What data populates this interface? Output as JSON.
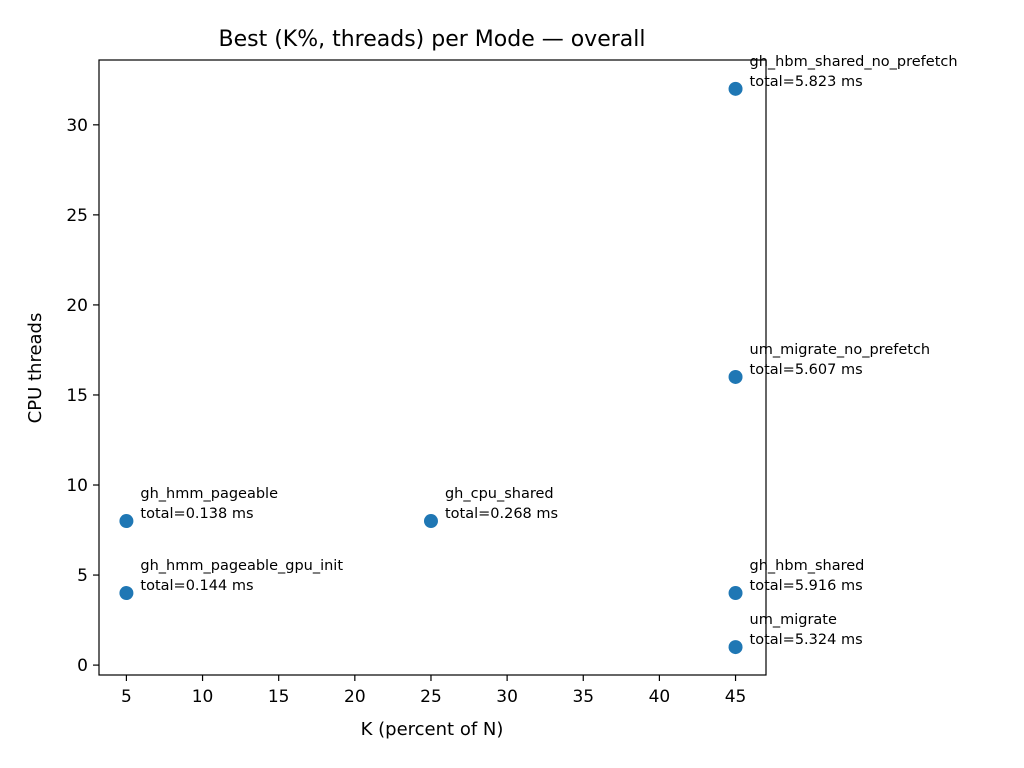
{
  "chart_data": {
    "type": "scatter",
    "title": "Best (K%, threads) per Mode — overall",
    "xlabel": "K (percent of N)",
    "ylabel": "CPU threads",
    "xlim": [
      3.2,
      47.0
    ],
    "ylim": [
      -0.55,
      33.6
    ],
    "xticks": [
      5,
      10,
      15,
      20,
      25,
      30,
      35,
      40,
      45
    ],
    "yticks": [
      0,
      5,
      10,
      15,
      20,
      25,
      30
    ],
    "grid": false,
    "marker_color": "#1f77b4",
    "points": [
      {
        "label": "gh_hmm_pageable",
        "total": "total=0.138 ms",
        "x": 5,
        "y": 8
      },
      {
        "label": "gh_hmm_pageable_gpu_init",
        "total": "total=0.144 ms",
        "x": 5,
        "y": 4
      },
      {
        "label": "gh_cpu_shared",
        "total": "total=0.268 ms",
        "x": 25,
        "y": 8
      },
      {
        "label": "gh_hbm_shared_no_prefetch",
        "total": "total=5.823 ms",
        "x": 45,
        "y": 32
      },
      {
        "label": "um_migrate_no_prefetch",
        "total": "total=5.607 ms",
        "x": 45,
        "y": 16
      },
      {
        "label": "gh_hbm_shared",
        "total": "total=5.916 ms",
        "x": 45,
        "y": 4
      },
      {
        "label": "um_migrate",
        "total": "total=5.324 ms",
        "x": 45,
        "y": 1
      }
    ]
  }
}
